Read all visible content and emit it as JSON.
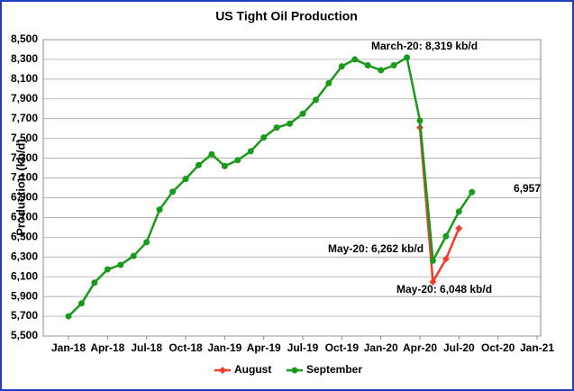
{
  "chart_data": {
    "type": "line",
    "title": "US Tight Oil Production",
    "y_label": "Production (kb/d)",
    "categories": [
      "Jan-18",
      null,
      null,
      "Apr-18",
      null,
      null,
      "Jul-18",
      null,
      null,
      "Oct-18",
      null,
      null,
      "Jan-19",
      null,
      null,
      "Apr-19",
      null,
      null,
      "Jul-19",
      null,
      null,
      "Oct-19",
      null,
      null,
      "Jan-20",
      null,
      null,
      "Apr-20",
      null,
      null,
      "Jul-20",
      null,
      null,
      "Oct-20",
      null,
      null,
      "Jan-21"
    ],
    "series": [
      {
        "name": "August",
        "color": "#f03c2c",
        "marker": "diamond",
        "values": [
          null,
          null,
          null,
          null,
          null,
          null,
          null,
          null,
          null,
          null,
          null,
          null,
          null,
          null,
          null,
          null,
          null,
          null,
          null,
          null,
          null,
          null,
          null,
          null,
          null,
          null,
          null,
          7610,
          6048,
          6280,
          6590,
          null,
          null,
          null,
          null,
          null,
          null
        ]
      },
      {
        "name": "September",
        "color": "#1a9a1a",
        "marker": "circle",
        "values": [
          5700,
          5830,
          6040,
          6175,
          6220,
          6310,
          6450,
          6780,
          6960,
          7090,
          7230,
          7340,
          7220,
          7280,
          7370,
          7510,
          7610,
          7650,
          7750,
          7890,
          8060,
          8230,
          8300,
          8240,
          8190,
          8240,
          8319,
          7680,
          6262,
          6510,
          6760,
          6957,
          null,
          null,
          null,
          null,
          null
        ]
      }
    ],
    "ylim": [
      5500,
      8500
    ],
    "yticks": [
      {
        "value": 5500,
        "label": "5,500"
      },
      {
        "value": 5700,
        "label": "5,700"
      },
      {
        "value": 5900,
        "label": "5,900"
      },
      {
        "value": 6100,
        "label": "6,100"
      },
      {
        "value": 6300,
        "label": "6,300"
      },
      {
        "value": 6500,
        "label": "6,500"
      },
      {
        "value": 6700,
        "label": "6,700"
      },
      {
        "value": 6900,
        "label": "6,900"
      },
      {
        "value": 7100,
        "label": "7,100"
      },
      {
        "value": 7300,
        "label": "7,300"
      },
      {
        "value": 7500,
        "label": "7,500"
      },
      {
        "value": 7700,
        "label": "7,700"
      },
      {
        "value": 7900,
        "label": "7,900"
      },
      {
        "value": 8100,
        "label": "8,100"
      },
      {
        "value": 8300,
        "label": "8,300"
      },
      {
        "value": 8500,
        "label": "8,500"
      }
    ],
    "grid": true,
    "legend": "bottom",
    "annotations": [
      "March-20: 8,319 kb/d",
      "6,957",
      "May-20: 6,262 kb/d",
      "May-20: 6,048 kb/d"
    ]
  }
}
